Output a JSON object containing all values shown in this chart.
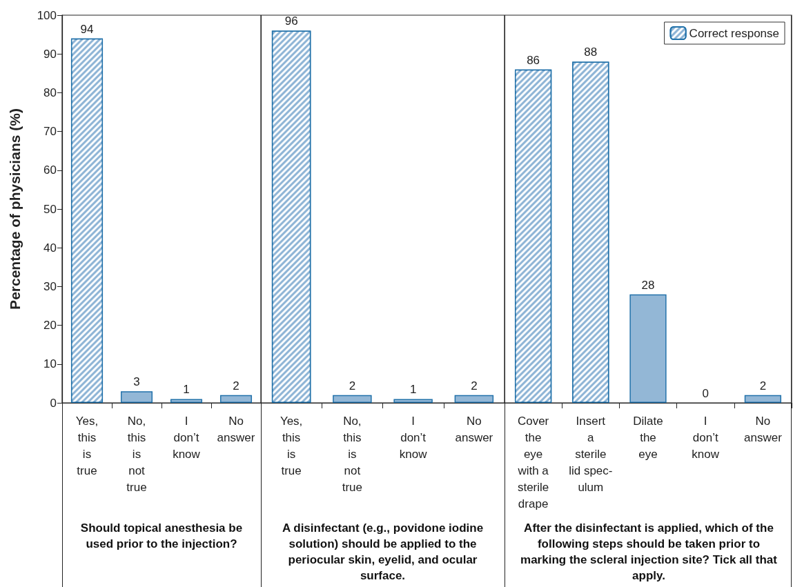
{
  "chart_data": [
    {
      "type": "bar",
      "xlabel": "Should topical anesthesia be used prior to the injection?",
      "ylabel": "Percentage of physicians (%)",
      "categories": [
        "Yes,\nthis\nis\ntrue",
        "No,\nthis\nis\nnot\ntrue",
        "I\ndon’t\nknow",
        "No\nanswer"
      ],
      "stacked": true,
      "ylim": [
        0,
        100
      ],
      "yticks": [
        0,
        10,
        20,
        30,
        40,
        50,
        60,
        70,
        80,
        90,
        100
      ],
      "data_labels": true,
      "series": [
        {
          "color": "#8fb5d6",
          "values": [
            94,
            null,
            null,
            null
          ]
        },
        {
          "color": "#93b7d6",
          "values": [
            null,
            3,
            1,
            2
          ]
        }
      ]
    },
    {
      "type": "bar",
      "xlabel": "A disinfectant (e.g., povidone iodine solution) should be applied to the periocular skin, eyelid, and ocular surface.",
      "categories": [
        "Yes,\nthis\nis\ntrue",
        "No,\nthis\nis\nnot\ntrue",
        "I\ndon’t\nknow",
        "No\nanswer"
      ],
      "stacked": true,
      "ylim": [
        0,
        100
      ],
      "yticks": [
        0,
        10,
        20,
        30,
        40,
        50,
        60,
        70,
        80,
        90,
        100
      ],
      "data_labels": true,
      "tick_labels": "x",
      "series": [
        {
          "color": "#8fb5d6",
          "values": [
            96,
            null,
            null,
            null
          ]
        },
        {
          "color": "#93b7d6",
          "values": [
            null,
            2,
            1,
            2
          ]
        }
      ]
    },
    {
      "type": "bar",
      "xlabel": "After the disinfectant is applied, which of the following steps should be taken prior to marking the scleral injection site? Tick all that apply.",
      "categories": [
        "Cover\nthe\neye\nwith a\nsterile\ndrape",
        "Insert\na\nsterile\nlid spec-\nulum",
        "Dilate\nthe\neye",
        "I\ndon’t\nknow",
        "No\nanswer"
      ],
      "stacked": true,
      "ylim": [
        0,
        100
      ],
      "yticks": [
        0,
        10,
        20,
        30,
        40,
        50,
        60,
        70,
        80,
        90,
        100
      ],
      "data_labels": true,
      "tick_labels": "x",
      "legend": "top right",
      "series": [
        {
          "name": "Correct response",
          "color": "#8fb5d6",
          "values": [
            86,
            88,
            null,
            null,
            null
          ]
        },
        {
          "color": "#93b7d6",
          "values": [
            null,
            null,
            28,
            0,
            2
          ]
        }
      ]
    }
  ]
}
